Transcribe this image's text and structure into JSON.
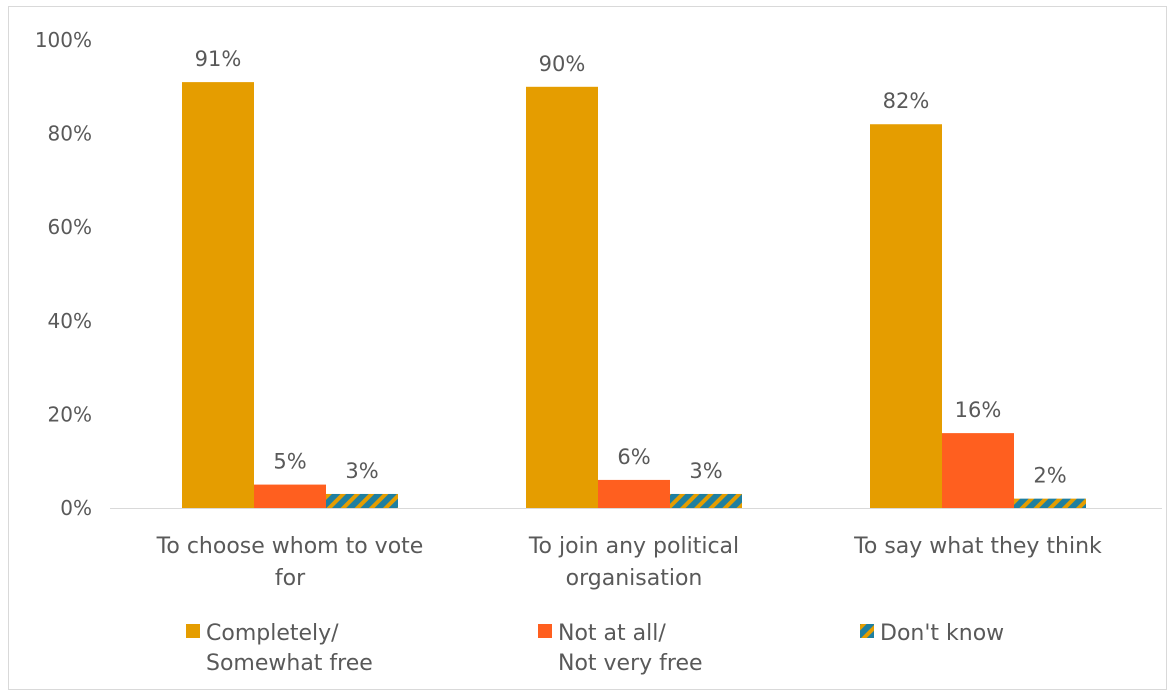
{
  "chart_data": {
    "type": "bar",
    "categories": [
      [
        "To choose whom to vote",
        "for"
      ],
      [
        "To join any political",
        "organisation"
      ],
      [
        "To say what they think"
      ]
    ],
    "series": [
      {
        "name": [
          "Completely/",
          "Somewhat free"
        ],
        "values": [
          91,
          90,
          82
        ],
        "labels": [
          "91%",
          "90%",
          "82%"
        ],
        "color": "#E59D00"
      },
      {
        "name": [
          "Not at all/",
          "Not very free"
        ],
        "values": [
          5,
          6,
          16
        ],
        "labels": [
          "5%",
          "6%",
          "16%"
        ],
        "color": "#FF5F1F"
      },
      {
        "name": [
          "Don't know"
        ],
        "values": [
          3,
          3,
          2
        ],
        "labels": [
          "3%",
          "3%",
          "2%"
        ],
        "color": "#1F7FA0",
        "pattern": "diagonal-stripes",
        "pattern_accent": "#E59D00"
      }
    ],
    "y_ticks": [
      "0%",
      "20%",
      "40%",
      "60%",
      "80%",
      "100%"
    ],
    "ylim": [
      0,
      100
    ],
    "grid": false,
    "legend_position": "bottom",
    "title": "",
    "xlabel": "",
    "ylabel": ""
  }
}
